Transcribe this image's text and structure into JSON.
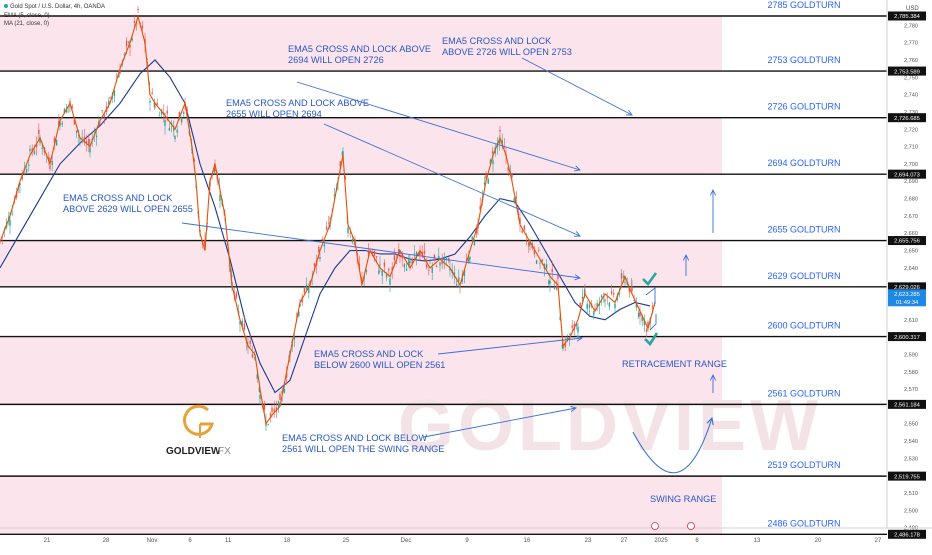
{
  "header": {
    "symbol": "Gold Spot / U.S. Dollar, 4h, OANDA",
    "ema_label": "EMA (5, close, 0)",
    "ma_label": "MA (21, close, 0)"
  },
  "axis": {
    "currency": "USD"
  },
  "logo": {
    "brand": "GOLDVIEW",
    "suffix": "FX"
  },
  "watermark": "GOLDVIEW",
  "chart_data": {
    "type": "line",
    "ylim": [
      2480,
      2790
    ],
    "y_ticks": [
      2490,
      2500,
      2510,
      2520,
      2530,
      2540,
      2550,
      2560,
      2570,
      2580,
      2590,
      2600,
      2610,
      2620,
      2630,
      2640,
      2650,
      2660,
      2670,
      2680,
      2690,
      2700,
      2710,
      2720,
      2730,
      2740,
      2750,
      2760,
      2770,
      2780
    ],
    "x_ticks": [
      {
        "label": "21",
        "x": 47
      },
      {
        "label": "28",
        "x": 106
      },
      {
        "label": "Nov",
        "x": 152
      },
      {
        "label": "6",
        "x": 190
      },
      {
        "label": "11",
        "x": 228
      },
      {
        "label": "18",
        "x": 287
      },
      {
        "label": "25",
        "x": 346
      },
      {
        "label": "Dec",
        "x": 406
      },
      {
        "label": "9",
        "x": 467
      },
      {
        "label": "16",
        "x": 527
      },
      {
        "label": "23",
        "x": 588
      },
      {
        "label": "27",
        "x": 624
      },
      {
        "label": "2025",
        "x": 661
      },
      {
        "label": "6",
        "x": 697
      },
      {
        "label": "13",
        "x": 757
      },
      {
        "label": "20",
        "x": 818
      },
      {
        "label": "27",
        "x": 878
      }
    ],
    "levels": [
      {
        "value": 2785.384,
        "tag": "2,785.384",
        "label": "2785 GOLDTURN"
      },
      {
        "value": 2753.589,
        "tag": "2,753.589",
        "label": "2753 GOLDTURN"
      },
      {
        "value": 2726.685,
        "tag": "2,726.685",
        "label": "2726 GOLDTURN"
      },
      {
        "value": 2694.073,
        "tag": "2,694.073",
        "label": "2694 GOLDTURN"
      },
      {
        "value": 2655.756,
        "tag": "2,655.756",
        "label": "2655 GOLDTURN"
      },
      {
        "value": 2629.026,
        "tag": "2,629.026",
        "label": "2629 GOLDTURN"
      },
      {
        "value": 2600.317,
        "tag": "2,600.317",
        "label": "2600 GOLDTURN"
      },
      {
        "value": 2561.184,
        "tag": "2,561.184",
        "label": "2561 GOLDTURN"
      },
      {
        "value": 2519.755,
        "tag": "2,519.755",
        "label": "2519 GOLDTURN"
      },
      {
        "value": 2486.178,
        "tag": "2,486.178",
        "label": "2486 GOLDTURN"
      }
    ],
    "current_price": {
      "tag": "2,623.285",
      "countdown": "01:49:34",
      "value": 2623.285
    },
    "series": [
      {
        "name": "EMA (5, close, 0)",
        "color": "#e65100"
      },
      {
        "name": "MA (21, close, 0)",
        "color": "#1a3a8f"
      }
    ],
    "price_path": [
      [
        0,
        2655
      ],
      [
        10,
        2670
      ],
      [
        20,
        2690
      ],
      [
        30,
        2705
      ],
      [
        40,
        2715
      ],
      [
        50,
        2700
      ],
      [
        60,
        2725
      ],
      [
        70,
        2735
      ],
      [
        80,
        2715
      ],
      [
        90,
        2710
      ],
      [
        100,
        2725
      ],
      [
        110,
        2735
      ],
      [
        120,
        2755
      ],
      [
        130,
        2770
      ],
      [
        138,
        2785
      ],
      [
        145,
        2770
      ],
      [
        150,
        2740
      ],
      [
        155,
        2735
      ],
      [
        165,
        2728
      ],
      [
        175,
        2720
      ],
      [
        185,
        2735
      ],
      [
        192,
        2710
      ],
      [
        196,
        2690
      ],
      [
        200,
        2660
      ],
      [
        205,
        2650
      ],
      [
        210,
        2690
      ],
      [
        215,
        2700
      ],
      [
        220,
        2685
      ],
      [
        225,
        2670
      ],
      [
        232,
        2630
      ],
      [
        240,
        2610
      ],
      [
        248,
        2595
      ],
      [
        255,
        2590
      ],
      [
        260,
        2570
      ],
      [
        266,
        2550
      ],
      [
        272,
        2555
      ],
      [
        280,
        2560
      ],
      [
        290,
        2590
      ],
      [
        300,
        2620
      ],
      [
        310,
        2630
      ],
      [
        320,
        2650
      ],
      [
        330,
        2665
      ],
      [
        338,
        2690
      ],
      [
        343,
        2705
      ],
      [
        348,
        2665
      ],
      [
        355,
        2655
      ],
      [
        362,
        2630
      ],
      [
        370,
        2650
      ],
      [
        380,
        2640
      ],
      [
        390,
        2635
      ],
      [
        400,
        2650
      ],
      [
        410,
        2640
      ],
      [
        420,
        2650
      ],
      [
        430,
        2640
      ],
      [
        440,
        2645
      ],
      [
        450,
        2640
      ],
      [
        460,
        2630
      ],
      [
        470,
        2650
      ],
      [
        478,
        2665
      ],
      [
        486,
        2690
      ],
      [
        493,
        2705
      ],
      [
        500,
        2715
      ],
      [
        506,
        2705
      ],
      [
        512,
        2690
      ],
      [
        520,
        2665
      ],
      [
        530,
        2655
      ],
      [
        540,
        2645
      ],
      [
        550,
        2635
      ],
      [
        558,
        2630
      ],
      [
        563,
        2595
      ],
      [
        570,
        2600
      ],
      [
        578,
        2610
      ],
      [
        585,
        2625
      ],
      [
        595,
        2615
      ],
      [
        605,
        2625
      ],
      [
        615,
        2620
      ],
      [
        625,
        2635
      ],
      [
        632,
        2625
      ],
      [
        640,
        2615
      ],
      [
        648,
        2605
      ],
      [
        655,
        2620
      ]
    ],
    "ma_path": [
      [
        0,
        2640
      ],
      [
        20,
        2660
      ],
      [
        40,
        2680
      ],
      [
        60,
        2700
      ],
      [
        80,
        2712
      ],
      [
        100,
        2722
      ],
      [
        120,
        2735
      ],
      [
        140,
        2752
      ],
      [
        155,
        2760
      ],
      [
        170,
        2750
      ],
      [
        185,
        2735
      ],
      [
        200,
        2700
      ],
      [
        215,
        2675
      ],
      [
        230,
        2645
      ],
      [
        245,
        2610
      ],
      [
        260,
        2585
      ],
      [
        275,
        2568
      ],
      [
        290,
        2575
      ],
      [
        305,
        2600
      ],
      [
        320,
        2625
      ],
      [
        335,
        2640
      ],
      [
        350,
        2650
      ],
      [
        365,
        2650
      ],
      [
        380,
        2648
      ],
      [
        395,
        2648
      ],
      [
        410,
        2645
      ],
      [
        425,
        2644
      ],
      [
        440,
        2645
      ],
      [
        455,
        2648
      ],
      [
        470,
        2658
      ],
      [
        485,
        2670
      ],
      [
        500,
        2680
      ],
      [
        515,
        2678
      ],
      [
        530,
        2665
      ],
      [
        545,
        2650
      ],
      [
        560,
        2635
      ],
      [
        575,
        2620
      ],
      [
        590,
        2612
      ],
      [
        605,
        2610
      ],
      [
        620,
        2616
      ],
      [
        635,
        2620
      ],
      [
        650,
        2618
      ]
    ],
    "annotations": [
      {
        "lines": [
          "EMA5 CROSS AND LOCK ABOVE",
          "2694 WILL OPEN 2726"
        ],
        "x": 288,
        "y": 52
      },
      {
        "lines": [
          "EMA5 CROSS AND LOCK",
          "ABOVE 2726 WILL OPEN 2753"
        ],
        "x": 442,
        "y": 44
      },
      {
        "lines": [
          "EMA5 CROSS AND LOCK ABOVE",
          "2655 WILL OPEN 2694"
        ],
        "x": 226,
        "y": 106
      },
      {
        "lines": [
          "EMA5 CROSS AND LOCK",
          "ABOVE 2629 WILL OPEN 2655"
        ],
        "x": 63,
        "y": 201
      },
      {
        "lines": [
          "EMA5 CROSS AND LOCK",
          "BELOW 2600 WILL OPEN 2561"
        ],
        "x": 314,
        "y": 357
      },
      {
        "lines": [
          "EMA5 CROSS AND LOCK BELOW",
          "2561 WILL OPEN THE SWING RANGE"
        ],
        "x": 282,
        "y": 441
      },
      {
        "lines": [
          "RETRACEMENT RANGE"
        ],
        "x": 622,
        "y": 367
      },
      {
        "lines": [
          "SWING RANGE"
        ],
        "x": 650,
        "y": 502
      }
    ]
  }
}
